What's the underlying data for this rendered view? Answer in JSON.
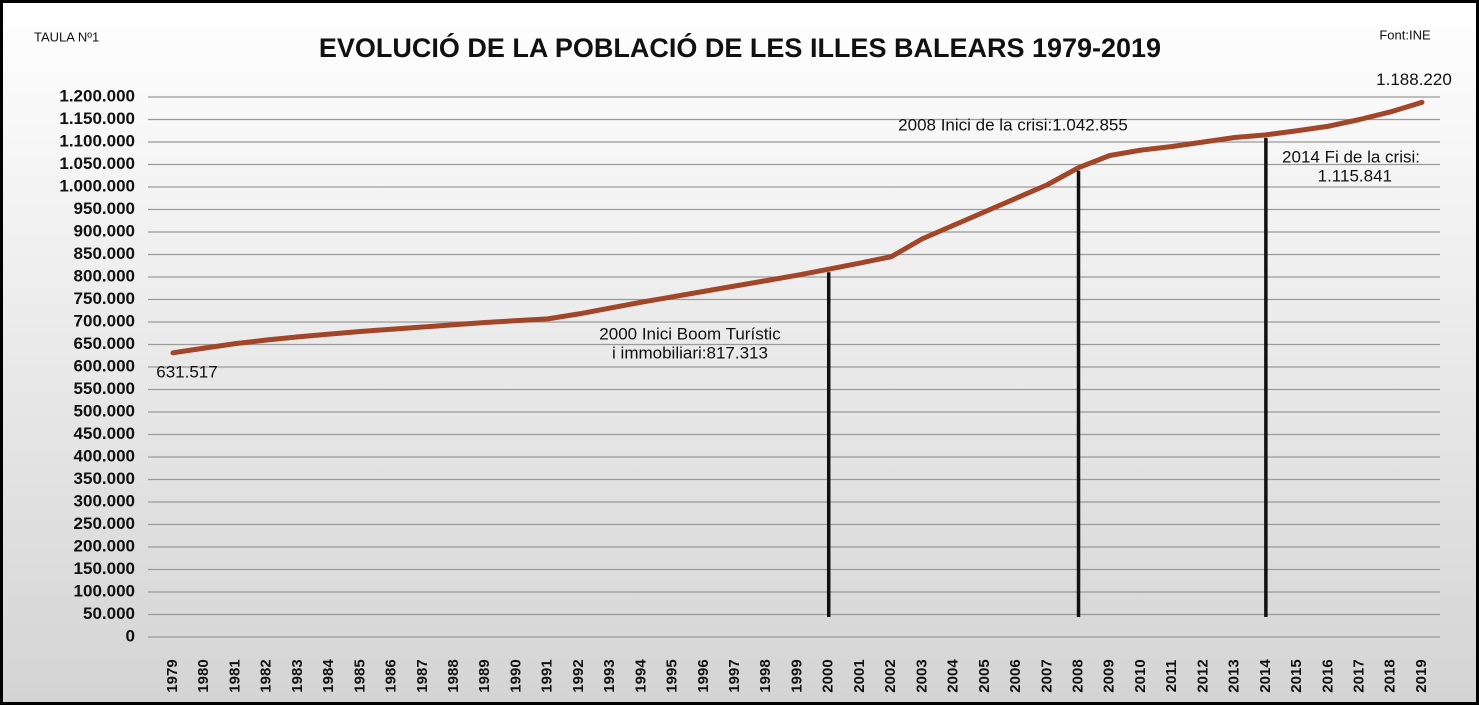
{
  "chart_data": {
    "type": "line",
    "corner_left": "TAULA Nº1",
    "title": "EVOLUCIÓ DE LA POBLACIÓ DE LES ILLES BALEARS 1979-2019",
    "corner_right": "Font:INE",
    "categories": [
      "1979",
      "1980",
      "1981",
      "1982",
      "1983",
      "1984",
      "1985",
      "1986",
      "1987",
      "1988",
      "1989",
      "1990",
      "1991",
      "1992",
      "1993",
      "1994",
      "1995",
      "1996",
      "1997",
      "1998",
      "1999",
      "2000",
      "2001",
      "2002",
      "2003",
      "2004",
      "2005",
      "2006",
      "2007",
      "2008",
      "2009",
      "2010",
      "2011",
      "2012",
      "2013",
      "2014",
      "2015",
      "2016",
      "2017",
      "2018",
      "2019"
    ],
    "series": [
      {
        "color": "#a2462a",
        "values": [
          631517,
          642000,
          652000,
          660000,
          667000,
          673000,
          679000,
          684000,
          689000,
          694000,
          699000,
          703000,
          707000,
          718000,
          731000,
          744000,
          756000,
          768000,
          780000,
          792000,
          804000,
          817313,
          831000,
          845000,
          885000,
          915000,
          945000,
          975000,
          1005000,
          1042855,
          1070000,
          1082000,
          1090000,
          1100000,
          1110000,
          1115841,
          1125000,
          1135000,
          1150000,
          1167000,
          1188220
        ],
        "value_labels": [
          "631.517",
          null,
          null,
          null,
          null,
          null,
          null,
          null,
          null,
          null,
          null,
          null,
          null,
          null,
          null,
          null,
          null,
          null,
          null,
          null,
          null,
          null,
          null,
          null,
          null,
          null,
          null,
          null,
          null,
          null,
          null,
          null,
          null,
          null,
          null,
          null,
          null,
          null,
          null,
          null,
          "1.188.220"
        ]
      }
    ],
    "annotations": [
      {
        "x": "2000",
        "lines": [
          "2000 Inici Boom Turístic",
          "i immobiliari:817.313"
        ]
      },
      {
        "x": "2008",
        "lines": [
          "2008 Inici de la crisi:1.042.855"
        ]
      },
      {
        "x": "2014",
        "lines": [
          "2014 Fi de la crisi:",
          "1.115.841"
        ]
      }
    ],
    "ylim": [
      0,
      1200000
    ],
    "yticks": [
      0,
      {
        "value": 50000,
        "label": "50.000"
      },
      {
        "value": 100000,
        "label": "100.000"
      },
      {
        "value": 150000,
        "label": "150.000"
      },
      {
        "value": 200000,
        "label": "200.000"
      },
      {
        "value": 250000,
        "label": "250.000"
      },
      {
        "value": 300000,
        "label": "300.000"
      },
      {
        "value": 350000,
        "label": "350.000"
      },
      {
        "value": 400000,
        "label": "400.000"
      },
      {
        "value": 450000,
        "label": "450.000"
      },
      {
        "value": 500000,
        "label": "500.000"
      },
      {
        "value": 550000,
        "label": "550.000"
      },
      {
        "value": 600000,
        "label": "600.000"
      },
      {
        "value": 650000,
        "label": "650.000"
      },
      {
        "value": 700000,
        "label": "700.000"
      },
      {
        "value": 750000,
        "label": "750.000"
      },
      {
        "value": 800000,
        "label": "800.000"
      },
      {
        "value": 850000,
        "label": "850.000"
      },
      {
        "value": 900000,
        "label": "900.000"
      },
      {
        "value": 950000,
        "label": "950.000"
      },
      {
        "value": 1000000,
        "label": "1.000.000"
      },
      {
        "value": 1050000,
        "label": "1.050.000"
      },
      {
        "value": 1100000,
        "label": "1.100.000"
      },
      {
        "value": 1150000,
        "label": "1.150.000"
      },
      {
        "value": 1200000,
        "label": "1.200.000"
      }
    ],
    "grid": true
  }
}
